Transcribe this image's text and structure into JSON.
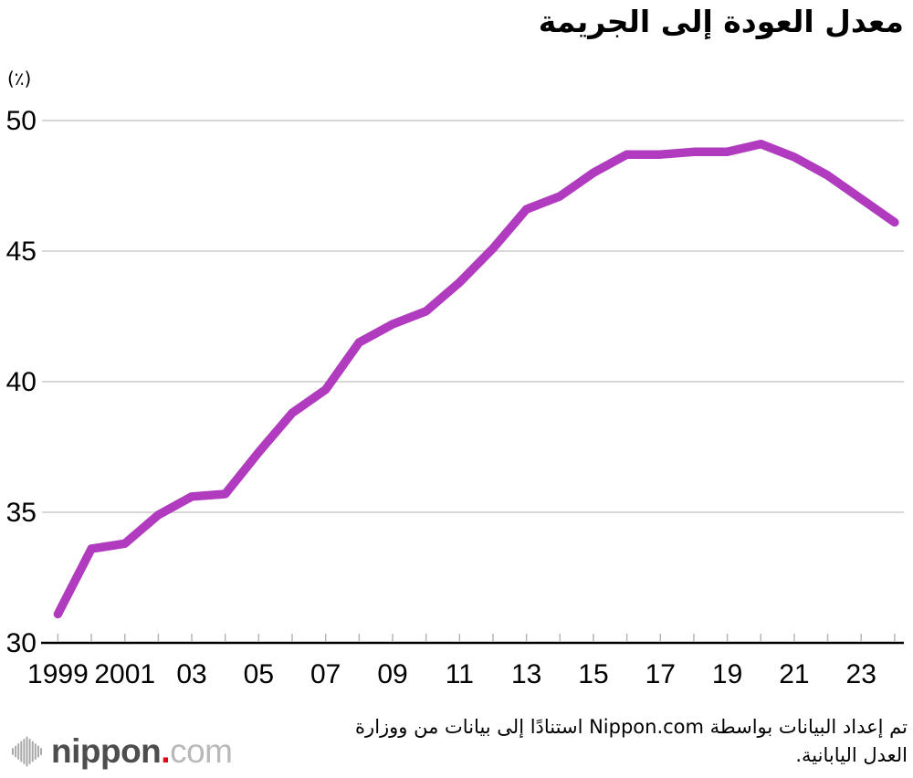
{
  "title": "معدل العودة إلى الجريمة",
  "unit_label": "(٪)",
  "colors": {
    "line": "#b13bbe",
    "gridline": "#d8d8d8",
    "axis": "#000000",
    "tick": "#b5b5b5",
    "label_text": "#000000",
    "logo_gray": "#4d4d4d",
    "logo_light_gray": "#b9b9b9",
    "logo_bars_gray": "#a9a9a9",
    "logo_dot_red": "#e60012"
  },
  "chart_data": {
    "type": "line",
    "title": "معدل العودة إلى الجريمة",
    "ylabel": "(٪)",
    "xlabel": "",
    "grid": "horizontal",
    "legend": "none",
    "ylim": [
      30,
      50
    ],
    "xlim": [
      1999,
      2024
    ],
    "y_ticks": [
      30,
      35,
      40,
      45,
      50
    ],
    "x_tick_labels": [
      {
        "year": 1999,
        "label": "1999"
      },
      {
        "year": 2001,
        "label": "2001"
      },
      {
        "year": 2003,
        "label": "03"
      },
      {
        "year": 2005,
        "label": "05"
      },
      {
        "year": 2007,
        "label": "07"
      },
      {
        "year": 2009,
        "label": "09"
      },
      {
        "year": 2011,
        "label": "11"
      },
      {
        "year": 2013,
        "label": "13"
      },
      {
        "year": 2015,
        "label": "15"
      },
      {
        "year": 2017,
        "label": "17"
      },
      {
        "year": 2019,
        "label": "19"
      },
      {
        "year": 2021,
        "label": "21"
      },
      {
        "year": 2023,
        "label": "23"
      }
    ],
    "x": [
      1999,
      2000,
      2001,
      2002,
      2003,
      2004,
      2005,
      2006,
      2007,
      2008,
      2009,
      2010,
      2011,
      2012,
      2013,
      2014,
      2015,
      2016,
      2017,
      2018,
      2019,
      2020,
      2021,
      2022,
      2023,
      2024
    ],
    "series": [
      {
        "name": "معدل العودة إلى الجريمة",
        "values": [
          31.1,
          33.6,
          33.8,
          34.9,
          35.6,
          35.7,
          37.3,
          38.8,
          39.7,
          41.5,
          42.2,
          42.7,
          43.8,
          45.1,
          46.6,
          47.1,
          48.0,
          48.7,
          48.7,
          48.8,
          48.8,
          49.1,
          48.6,
          47.9,
          47.0,
          46.1
        ]
      }
    ]
  },
  "footer": {
    "source_lines": [
      "تم إعداد البيانات بواسطة Nippon.com استنادًا إلى بيانات من ووزارة",
      "العدل اليابانية."
    ],
    "logo": {
      "icon": "soundwave-bars-icon",
      "name": "nippon",
      "dot": ".",
      "tld": "com"
    }
  }
}
